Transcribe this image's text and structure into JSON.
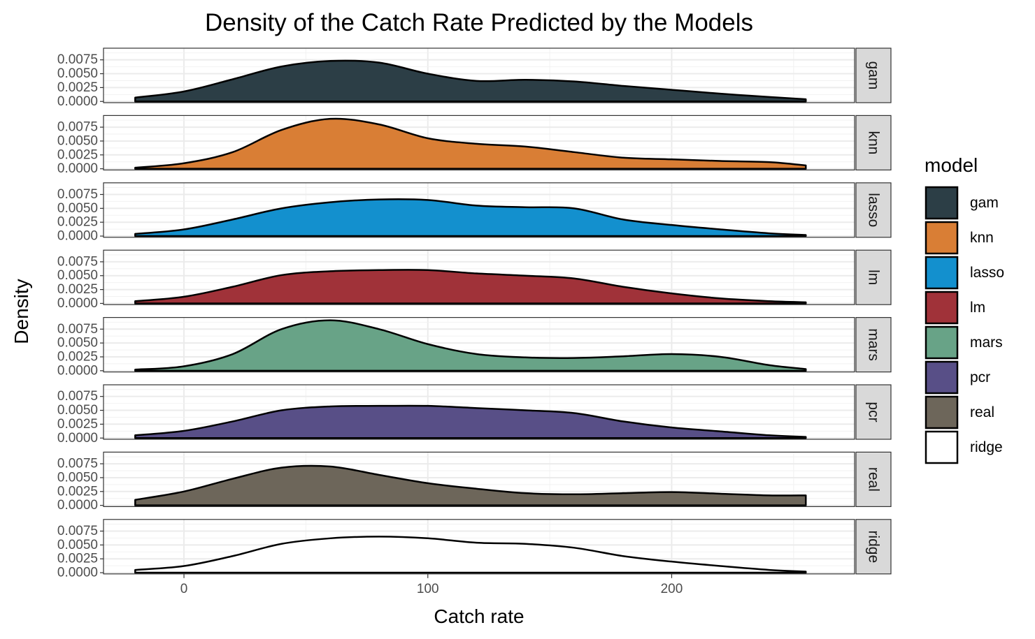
{
  "chart_data": {
    "type": "area",
    "title": "Density of the Catch Rate Predicted by the Models",
    "xlabel": "Catch rate",
    "ylabel": "Density",
    "xlim": [
      -33,
      275
    ],
    "ylim": [
      -0.00022,
      0.0096
    ],
    "x_ticks": [
      0,
      100,
      200
    ],
    "x_tick_labels": [
      "0",
      "100",
      "200"
    ],
    "y_ticks": [
      0,
      0.0025,
      0.005,
      0.0075
    ],
    "y_tick_labels": [
      "0.0000",
      "0.0025",
      "0.0050",
      "0.0075"
    ],
    "grid": true,
    "legend": {
      "title": "model",
      "position": "right"
    },
    "x": [
      -20,
      0,
      20,
      40,
      60,
      80,
      100,
      120,
      140,
      160,
      180,
      200,
      220,
      240,
      255
    ],
    "series": [
      {
        "name": "gam",
        "color": "#2C3E46",
        "values": [
          0.0007,
          0.0018,
          0.004,
          0.0063,
          0.0073,
          0.007,
          0.005,
          0.0037,
          0.0039,
          0.0036,
          0.0028,
          0.0021,
          0.0014,
          0.0008,
          0.0004
        ]
      },
      {
        "name": "knn",
        "color": "#D97E35",
        "values": [
          0.0002,
          0.001,
          0.003,
          0.007,
          0.009,
          0.008,
          0.0055,
          0.0045,
          0.004,
          0.003,
          0.002,
          0.0017,
          0.0014,
          0.0012,
          0.0006
        ]
      },
      {
        "name": "lasso",
        "color": "#1390CE",
        "values": [
          0.0004,
          0.0012,
          0.003,
          0.005,
          0.0061,
          0.0066,
          0.0065,
          0.0055,
          0.0052,
          0.005,
          0.003,
          0.002,
          0.0012,
          0.0005,
          0.0002
        ]
      },
      {
        "name": "lm",
        "color": "#A03239",
        "values": [
          0.0004,
          0.0012,
          0.003,
          0.0051,
          0.0058,
          0.006,
          0.006,
          0.0054,
          0.005,
          0.0045,
          0.003,
          0.0018,
          0.0009,
          0.0004,
          0.0002
        ]
      },
      {
        "name": "mars",
        "color": "#68A387",
        "values": [
          0.0002,
          0.0008,
          0.003,
          0.0075,
          0.0091,
          0.0075,
          0.0048,
          0.003,
          0.0024,
          0.0023,
          0.0026,
          0.003,
          0.0025,
          0.001,
          0.0003
        ]
      },
      {
        "name": "pcr",
        "color": "#584F87",
        "values": [
          0.0005,
          0.0013,
          0.003,
          0.005,
          0.0057,
          0.0058,
          0.0058,
          0.0054,
          0.005,
          0.0045,
          0.003,
          0.0019,
          0.0012,
          0.0005,
          0.0002
        ]
      },
      {
        "name": "real",
        "color": "#6D665A",
        "values": [
          0.001,
          0.0025,
          0.0048,
          0.0068,
          0.007,
          0.0055,
          0.004,
          0.003,
          0.0022,
          0.002,
          0.0022,
          0.0024,
          0.0021,
          0.0018,
          0.0018
        ]
      },
      {
        "name": "ridge",
        "color": "#FFFFFF",
        "values": [
          0.0005,
          0.0012,
          0.003,
          0.0052,
          0.0062,
          0.0065,
          0.0062,
          0.0054,
          0.0052,
          0.0045,
          0.003,
          0.002,
          0.0012,
          0.0005,
          0.0002
        ]
      }
    ]
  }
}
